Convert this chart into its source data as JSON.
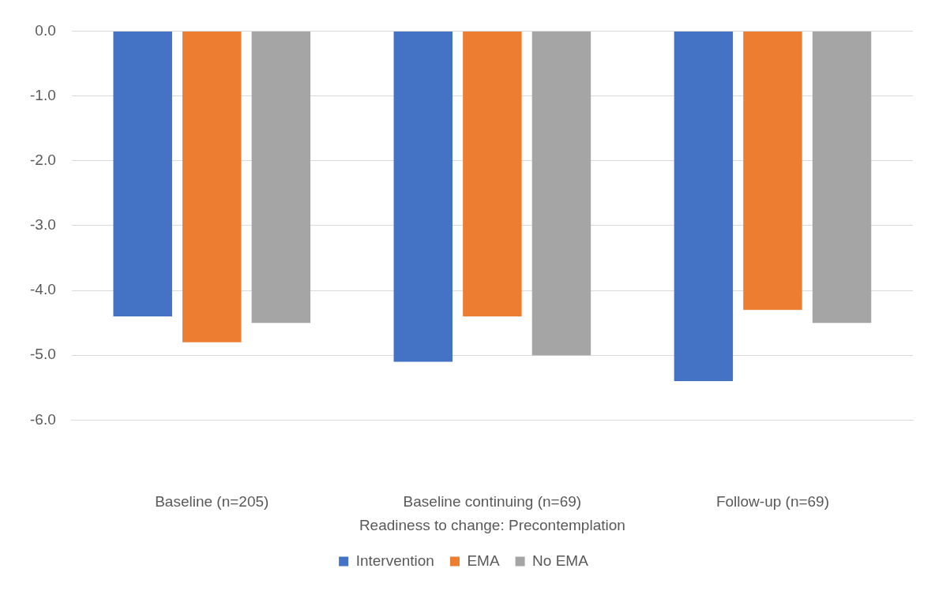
{
  "chart_data": {
    "type": "bar",
    "xlabel": "Readiness to change: Precontemplation",
    "categories": [
      "Baseline (n=205)",
      "Baseline continuing (n=69)",
      "Follow-up (n=69)"
    ],
    "series": [
      {
        "name": "Intervention",
        "color": "#4472c4",
        "values": [
          -4.4,
          -5.1,
          -5.4
        ]
      },
      {
        "name": "EMA",
        "color": "#ed7d31",
        "values": [
          -4.8,
          -4.4,
          -4.3
        ]
      },
      {
        "name": "No EMA",
        "color": "#a5a5a5",
        "values": [
          -4.5,
          -5.0,
          -4.5
        ]
      }
    ],
    "ylim": [
      -6,
      0
    ],
    "yticks": [
      {
        "value": 0,
        "label": "0.0"
      },
      {
        "value": -1,
        "label": "-1.0"
      },
      {
        "value": -2,
        "label": "-2.0"
      },
      {
        "value": -3,
        "label": "-3.0"
      },
      {
        "value": -4,
        "label": "-4.0"
      },
      {
        "value": -5,
        "label": "-5.0"
      },
      {
        "value": -6,
        "label": "-6.0"
      }
    ],
    "grid": "y",
    "legend": "bottom"
  }
}
